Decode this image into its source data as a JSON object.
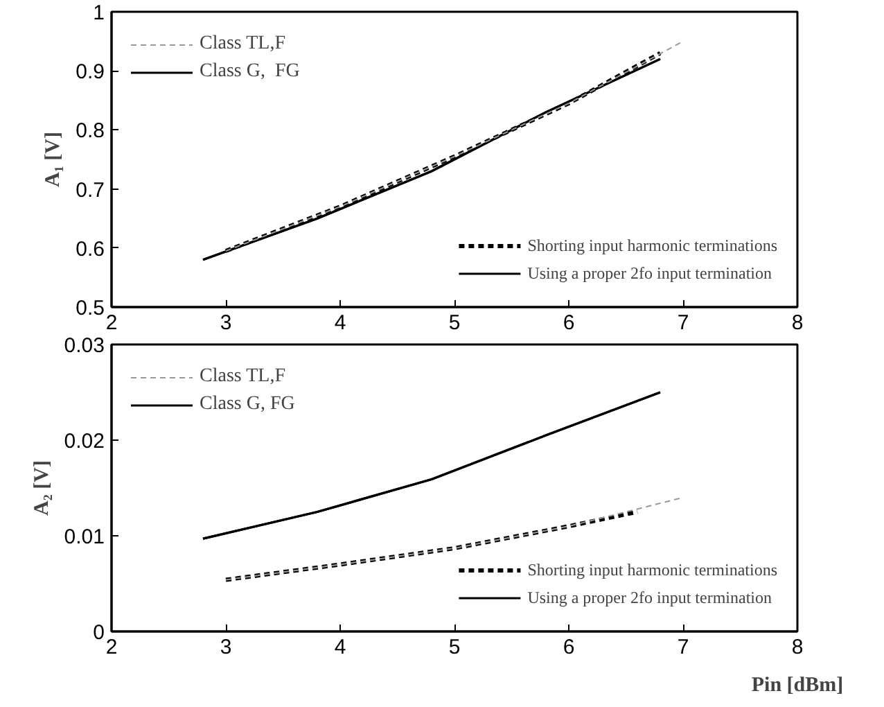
{
  "chart_data": [
    {
      "type": "line",
      "ylabel": "A₁ [V]",
      "xlim": [
        2,
        8
      ],
      "xticks": [
        2,
        3,
        4,
        5,
        6,
        7,
        8
      ],
      "ylim": [
        0.5,
        1
      ],
      "yticks": [
        0.5,
        0.6,
        0.7,
        0.8,
        0.9,
        1
      ],
      "grid": false,
      "legend": "top left",
      "series": [
        {
          "name": "Class TL,F",
          "color": "#999999",
          "line_style": "dashed",
          "x": [
            3,
            4,
            5,
            6,
            7
          ],
          "values": [
            0.595,
            0.67,
            0.755,
            0.845,
            0.95
          ]
        },
        {
          "name": "Class G,  FG",
          "color": "#000000",
          "line_style": "solid",
          "x": [
            2.8,
            3.8,
            4.8,
            5.8,
            6.8
          ],
          "values": [
            0.58,
            0.65,
            0.73,
            0.83,
            0.92
          ]
        },
        {
          "name": "Shorting input harmonic terminations",
          "color": "#000000",
          "line_style": "dashed",
          "x": [
            3,
            4,
            5,
            6,
            6.8
          ],
          "values": [
            0.595,
            0.67,
            0.755,
            0.845,
            0.93
          ]
        },
        {
          "name": "Using a proper 2fo input termination",
          "color": "#000000",
          "line_style": "solid",
          "x": [
            2.8,
            3.8,
            4.8,
            5.8,
            6.8
          ],
          "values": [
            0.58,
            0.65,
            0.73,
            0.83,
            0.92
          ]
        }
      ]
    },
    {
      "type": "line",
      "xlabel": "Pin [dBm]",
      "ylabel": "A₂ [V]",
      "xlim": [
        2,
        8
      ],
      "xticks": [
        2,
        3,
        4,
        5,
        6,
        7,
        8
      ],
      "ylim": [
        0,
        0.03
      ],
      "yticks": [
        0,
        0.01,
        0.02,
        0.03
      ],
      "grid": false,
      "legend": "top left",
      "series": [
        {
          "name": "Class TL,F",
          "color": "#999999",
          "line_style": "dashed",
          "x": [
            3,
            4,
            5,
            6,
            7
          ],
          "values": [
            0.0054,
            0.007,
            0.0087,
            0.011,
            0.014
          ]
        },
        {
          "name": "Class G, FG",
          "color": "#000000",
          "line_style": "solid",
          "x": [
            2.8,
            3.8,
            4.8,
            5.8,
            6.8
          ],
          "values": [
            0.0097,
            0.0125,
            0.0159,
            0.0205,
            0.025
          ]
        },
        {
          "name": "Shorting input harmonic terminations",
          "color": "#000000",
          "line_style": "dashed",
          "x": [
            3,
            4,
            5,
            6,
            6.6
          ],
          "values": [
            0.0054,
            0.007,
            0.0087,
            0.011,
            0.0125
          ]
        },
        {
          "name": "Using a proper 2fo input termination",
          "color": "#000000",
          "line_style": "solid",
          "x": [
            2.8,
            3.8,
            4.8,
            5.8,
            6.8
          ],
          "values": [
            0.0097,
            0.0125,
            0.0159,
            0.0205,
            0.025
          ]
        }
      ]
    }
  ]
}
